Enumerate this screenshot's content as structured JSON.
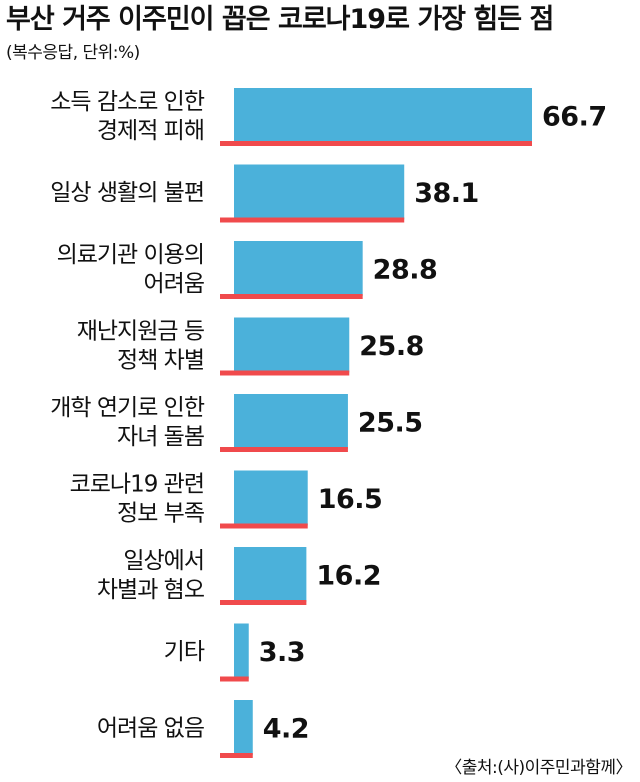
{
  "title": "부산 거주 이주민이 꼽은 코로나19로 가장 힘든 점",
  "subtitle": "(복수응답, 단위:%)",
  "source": "〈출처:(사)이주민과함께〉",
  "colors": {
    "bar": "#4bb1da",
    "baseline": "#f04a4c",
    "text": "#111111"
  },
  "chart_data": {
    "type": "bar",
    "orientation": "horizontal",
    "title": "부산 거주 이주민이 꼽은 코로나19로 가장 힘든 점",
    "subtitle": "(복수응답, 단위:%)",
    "categories": [
      [
        "소득 감소로 인한",
        "경제적 피해"
      ],
      [
        "일상 생활의 불편"
      ],
      [
        "의료기관 이용의",
        "어려움"
      ],
      [
        "재난지원금 등",
        "정책 차별"
      ],
      [
        "개학 연기로 인한",
        "자녀 돌봄"
      ],
      [
        "코로나19 관련",
        "정보 부족"
      ],
      [
        "일상에서",
        "차별과 혐오"
      ],
      [
        "기타"
      ],
      [
        "어려움 없음"
      ]
    ],
    "values": [
      66.7,
      38.1,
      28.8,
      25.8,
      25.5,
      16.5,
      16.2,
      3.3,
      4.2
    ],
    "value_labels": [
      "66.7",
      "38.1",
      "28.8",
      "25.8",
      "25.5",
      "16.5",
      "16.2",
      "3.3",
      "4.2"
    ],
    "xlim": [
      0,
      66.7
    ],
    "grid": false,
    "legend": "none"
  }
}
